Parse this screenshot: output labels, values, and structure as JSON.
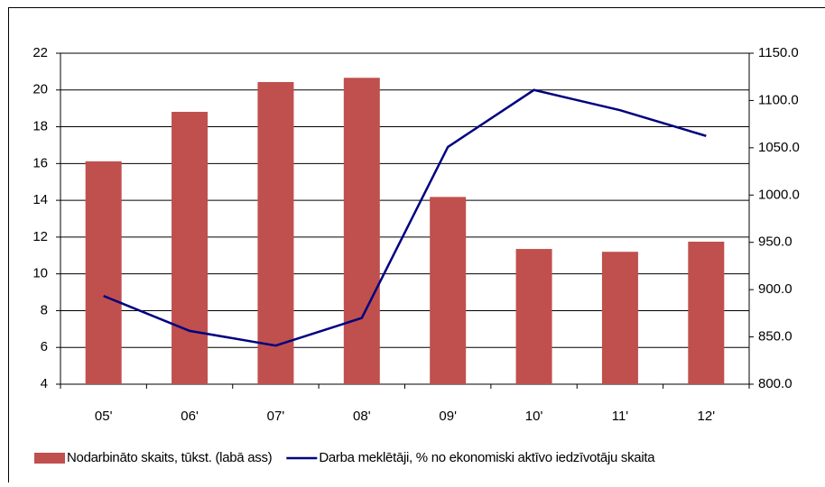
{
  "chart_data": {
    "type": "bar-line",
    "categories": [
      "05'",
      "06'",
      "07'",
      "08'",
      "09'",
      "10'",
      "11'",
      "12'"
    ],
    "series": [
      {
        "name": "Nodarbināto skaits, tūkst. (labā ass)",
        "type": "bar",
        "axis": "y2",
        "color": "#c0504d",
        "values": [
          1035.7,
          1088,
          1119.5,
          1124,
          998,
          943,
          940,
          950.7
        ]
      },
      {
        "name": "Darba meklētāji, % no ekonomiski aktīvo iedzīvotāju skaita",
        "type": "line",
        "axis": "y",
        "color": "#000080",
        "values": [
          8.8,
          6.9,
          6.1,
          7.6,
          16.9,
          20.0,
          18.9,
          17.5
        ]
      }
    ],
    "ylim": [
      4,
      22
    ],
    "yticks": [
      4,
      6,
      8,
      10,
      12,
      14,
      16,
      18,
      20,
      22
    ],
    "y2lim": [
      800,
      1150
    ],
    "y2ticks": [
      {
        "value": 800,
        "label": "800.0"
      },
      {
        "value": 850,
        "label": "850.0"
      },
      {
        "value": 900,
        "label": "900.0"
      },
      {
        "value": 950,
        "label": "950.0"
      },
      {
        "value": 1000,
        "label": "1000.0"
      },
      {
        "value": 1050,
        "label": "1050.0"
      },
      {
        "value": 1100,
        "label": "1100.0"
      },
      {
        "value": 1150,
        "label": "1150.0"
      }
    ],
    "grid": true,
    "legend": "bottom"
  }
}
